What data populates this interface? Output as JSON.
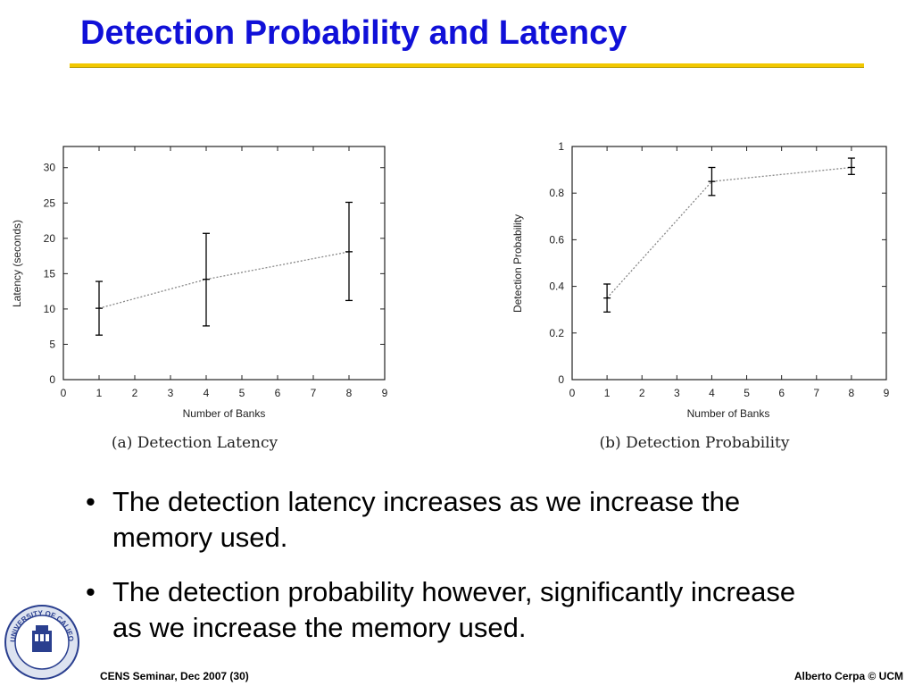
{
  "slide": {
    "title": "Detection Probability and Latency",
    "bullets": [
      "The detection latency increases as we increase the memory used.",
      "The detection probability however, significantly increase as we increase the memory used."
    ],
    "bullet_symbol": "•",
    "footer_left": "CENS Seminar, Dec 2007 (30)",
    "footer_right": "Alberto Cerpa © UCM",
    "logo_text": "UNIVERSITY OF CALIFORNIA · MERCED",
    "colors": {
      "title": "#1010d8",
      "rule": "#f2c800"
    }
  },
  "chart_data": [
    {
      "type": "line",
      "caption": "(a) Detection Latency",
      "xlabel": "Number of Banks",
      "ylabel": "Latency (seconds)",
      "xlim": [
        0,
        9
      ],
      "ylim": [
        0,
        33
      ],
      "xticks": [
        0,
        1,
        2,
        3,
        4,
        5,
        6,
        7,
        8,
        9
      ],
      "yticks": [
        0,
        5,
        10,
        15,
        20,
        25,
        30
      ],
      "series": [
        {
          "x": [
            1,
            4,
            8
          ],
          "values": [
            10.1,
            14.2,
            18.1
          ],
          "err_low": [
            6.3,
            7.6,
            11.2
          ],
          "err_high": [
            13.9,
            20.7,
            25.1
          ]
        }
      ],
      "grid": false,
      "error_bars": true
    },
    {
      "type": "line",
      "caption": "(b) Detection Probability",
      "xlabel": "Number of Banks",
      "ylabel": "Detection Probability",
      "xlim": [
        0,
        9
      ],
      "ylim": [
        0,
        1
      ],
      "xticks": [
        0,
        1,
        2,
        3,
        4,
        5,
        6,
        7,
        8,
        9
      ],
      "yticks": [
        0,
        0.2,
        0.4,
        0.6,
        0.8,
        1
      ],
      "series": [
        {
          "x": [
            1,
            4,
            8
          ],
          "values": [
            0.35,
            0.85,
            0.91
          ],
          "err_low": [
            0.29,
            0.79,
            0.88
          ],
          "err_high": [
            0.41,
            0.91,
            0.95
          ]
        }
      ],
      "grid": false,
      "error_bars": true
    }
  ]
}
